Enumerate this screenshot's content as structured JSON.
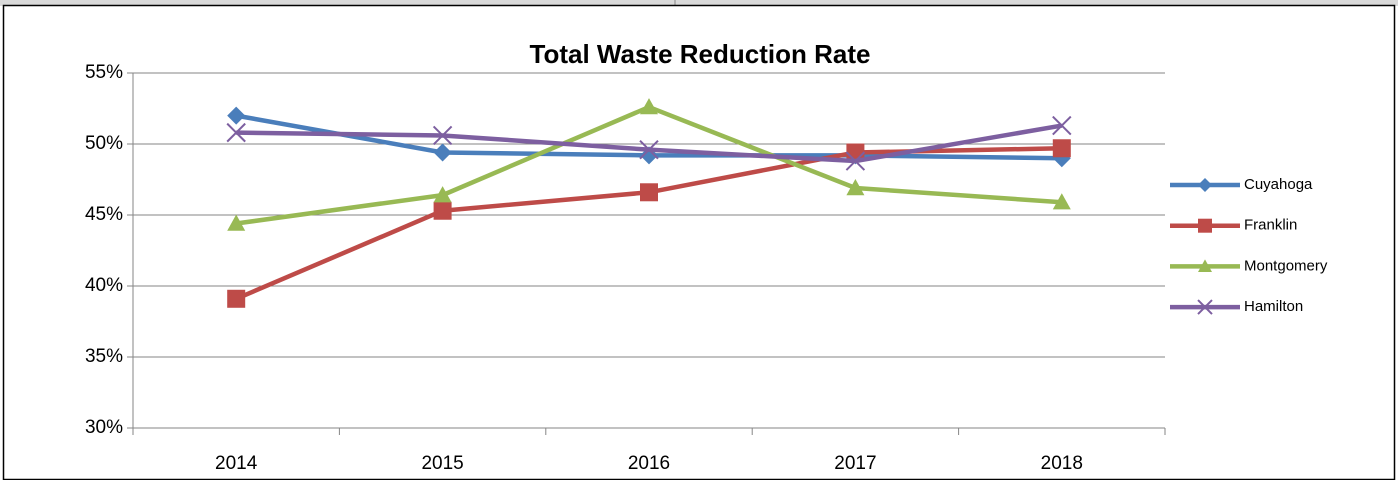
{
  "chart_data": {
    "type": "line",
    "title": "Total Waste Reduction Rate",
    "categories": [
      "2014",
      "2015",
      "2016",
      "2017",
      "2018"
    ],
    "series": [
      {
        "name": "Cuyahoga",
        "color": "#4a7ebb",
        "marker": "diamond",
        "values": [
          52.0,
          49.4,
          49.2,
          49.2,
          49.0
        ]
      },
      {
        "name": "Franklin",
        "color": "#be4b48",
        "marker": "square",
        "values": [
          39.1,
          45.3,
          46.6,
          49.4,
          49.7
        ]
      },
      {
        "name": "Montgomery",
        "color": "#98b954",
        "marker": "triangle",
        "values": [
          44.4,
          46.4,
          52.6,
          46.9,
          45.9
        ]
      },
      {
        "name": "Hamilton",
        "color": "#7d5fa0",
        "marker": "x",
        "values": [
          50.8,
          50.6,
          49.6,
          48.8,
          51.3
        ]
      }
    ],
    "ylim": [
      30,
      55
    ],
    "yticks": [
      {
        "value": 30,
        "label": "30%"
      },
      {
        "value": 35,
        "label": "35%"
      },
      {
        "value": 40,
        "label": "40%"
      },
      {
        "value": 45,
        "label": "45%"
      },
      {
        "value": 50,
        "label": "50%"
      },
      {
        "value": 55,
        "label": "55%"
      }
    ],
    "grid": true,
    "legend": "right"
  }
}
